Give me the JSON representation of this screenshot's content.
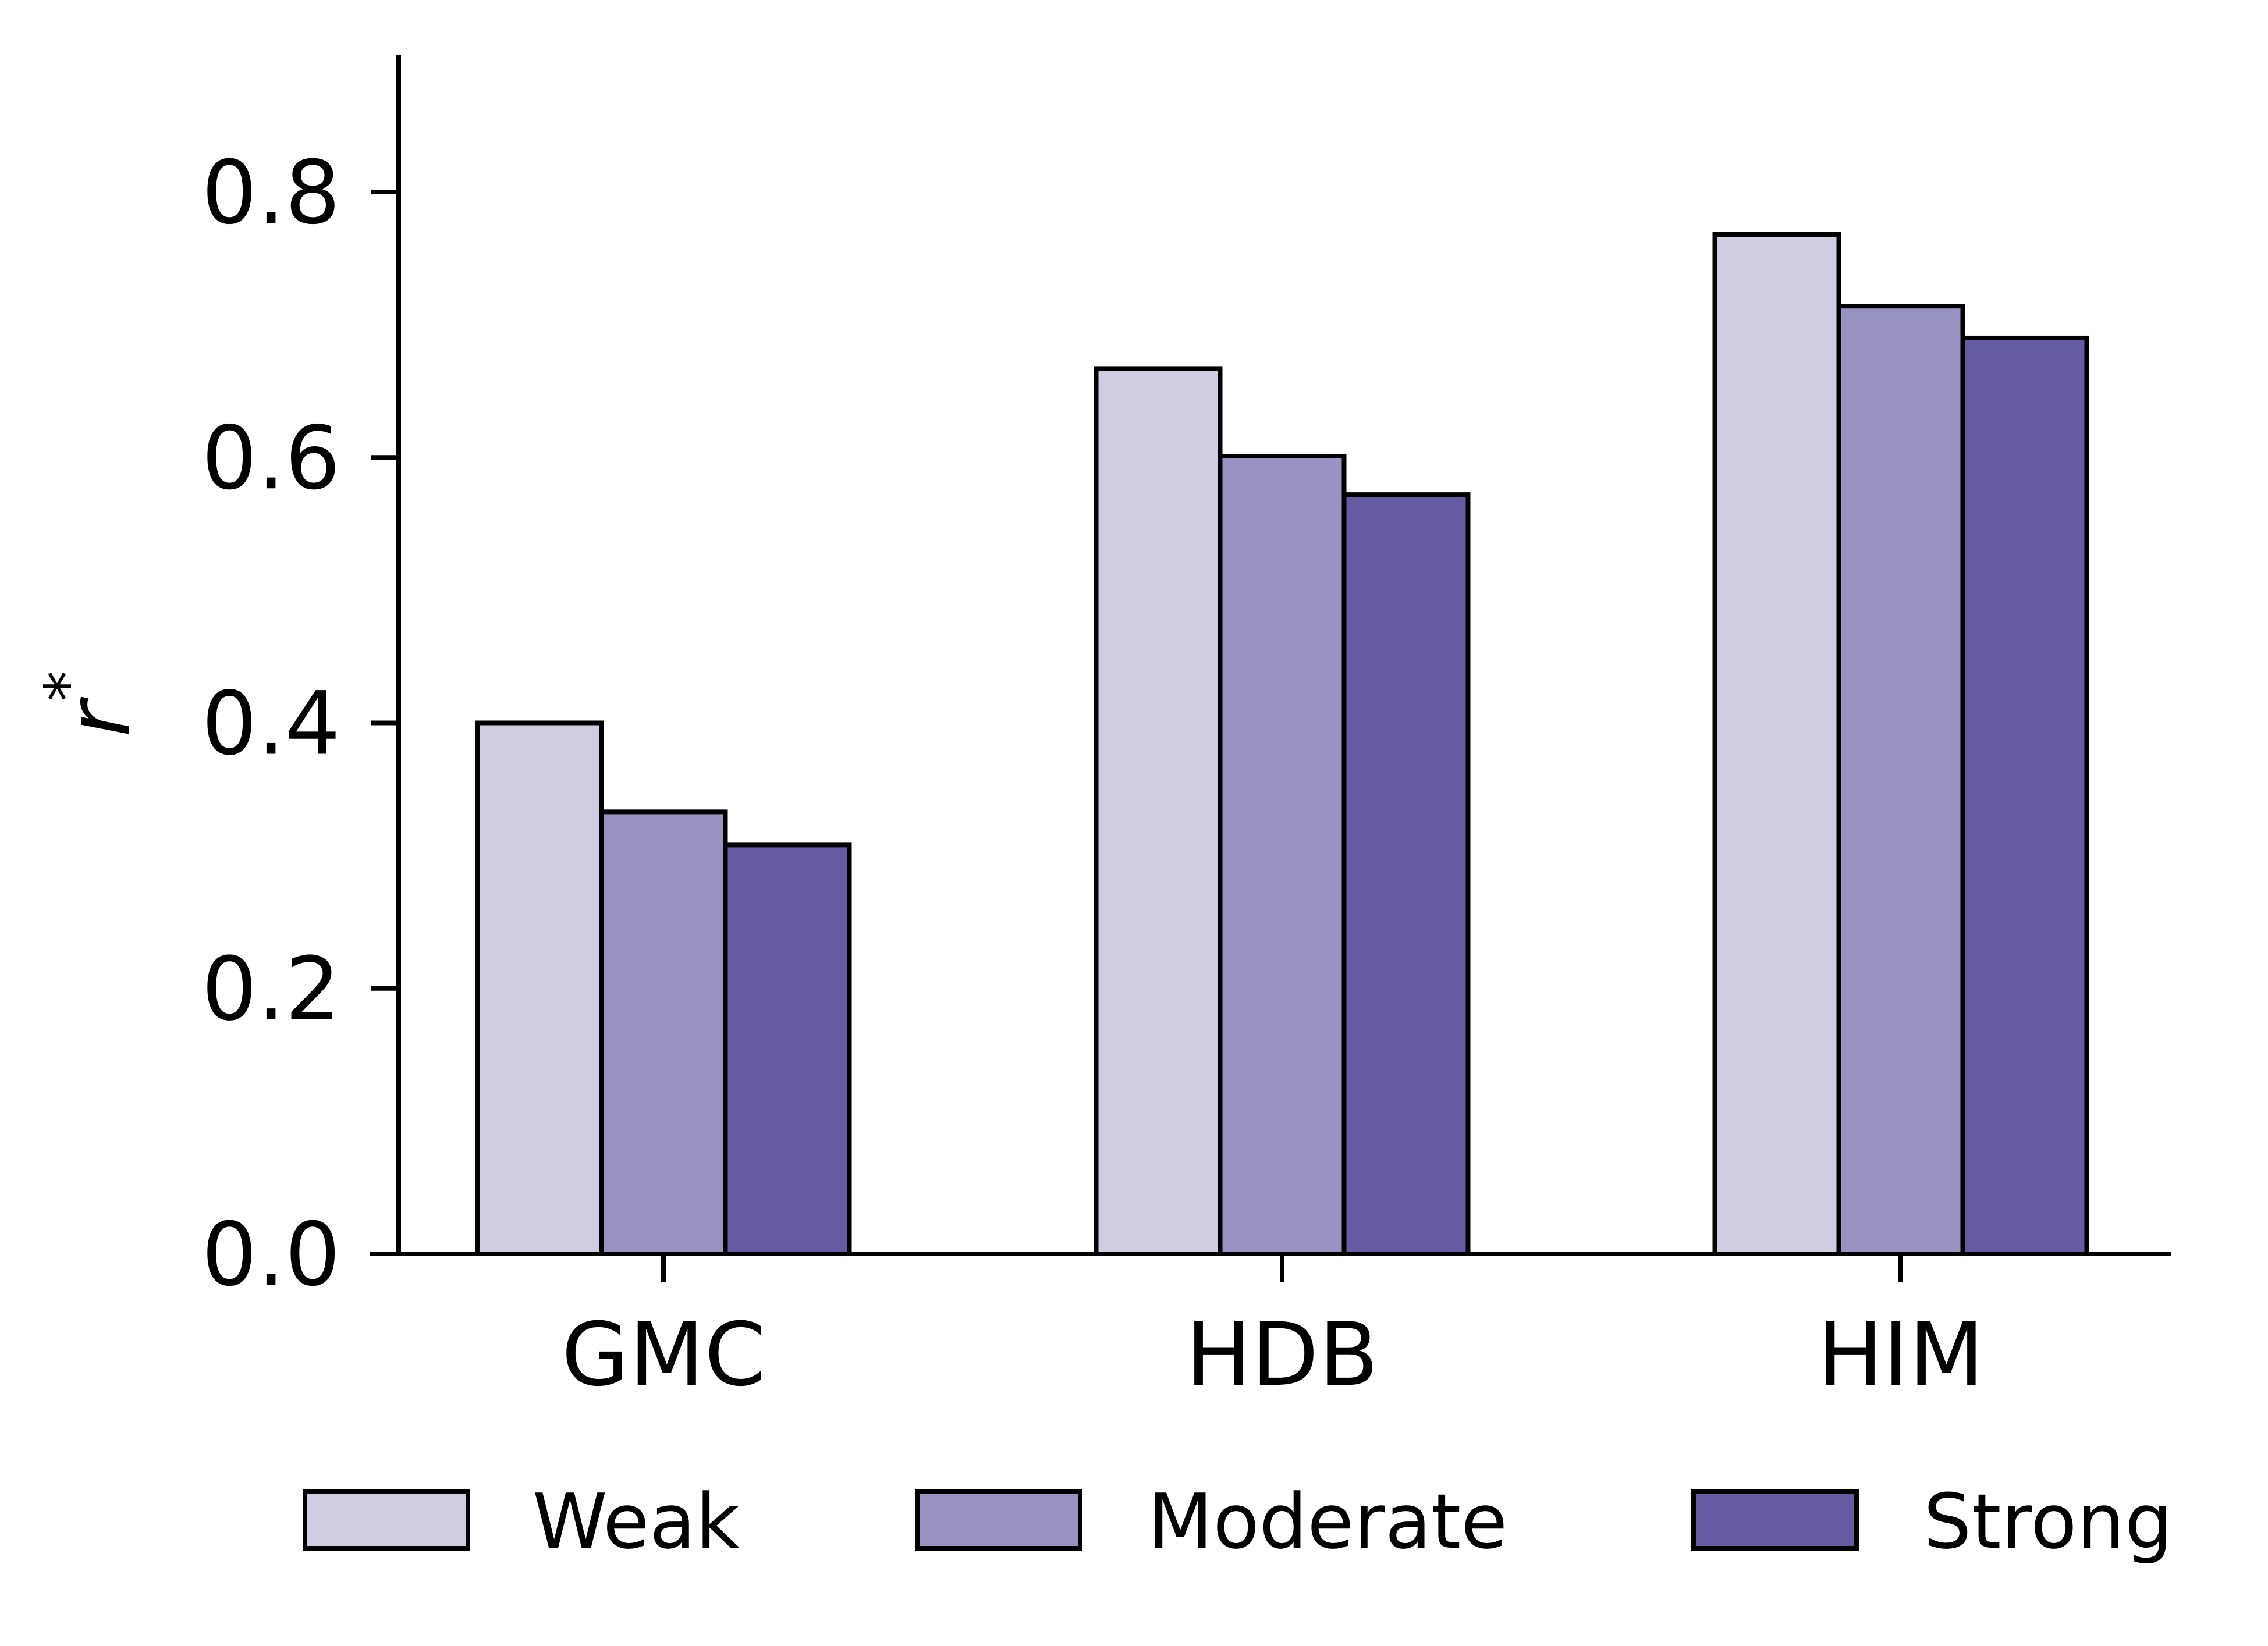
{
  "chart_data": {
    "type": "bar",
    "categories": [
      "GMC",
      "HDB",
      "HIM"
    ],
    "series": [
      {
        "name": "Weak",
        "values": [
          0.4,
          0.667,
          0.768
        ],
        "color": "#d0cde3"
      },
      {
        "name": "Moderate",
        "values": [
          0.333,
          0.601,
          0.714
        ],
        "color": "#9893c3"
      },
      {
        "name": "Strong",
        "values": [
          0.308,
          0.572,
          0.69
        ],
        "color": "#655ba3"
      }
    ],
    "title": "",
    "xlabel": "",
    "ylabel": "r",
    "ylabel_superscript": "*",
    "ylim": [
      0,
      0.9
    ],
    "yticks": [
      "0.0",
      "0.2",
      "0.4",
      "0.6",
      "0.8"
    ],
    "grid": false,
    "legend": "bottom",
    "bar_edge_color": "#000000"
  }
}
